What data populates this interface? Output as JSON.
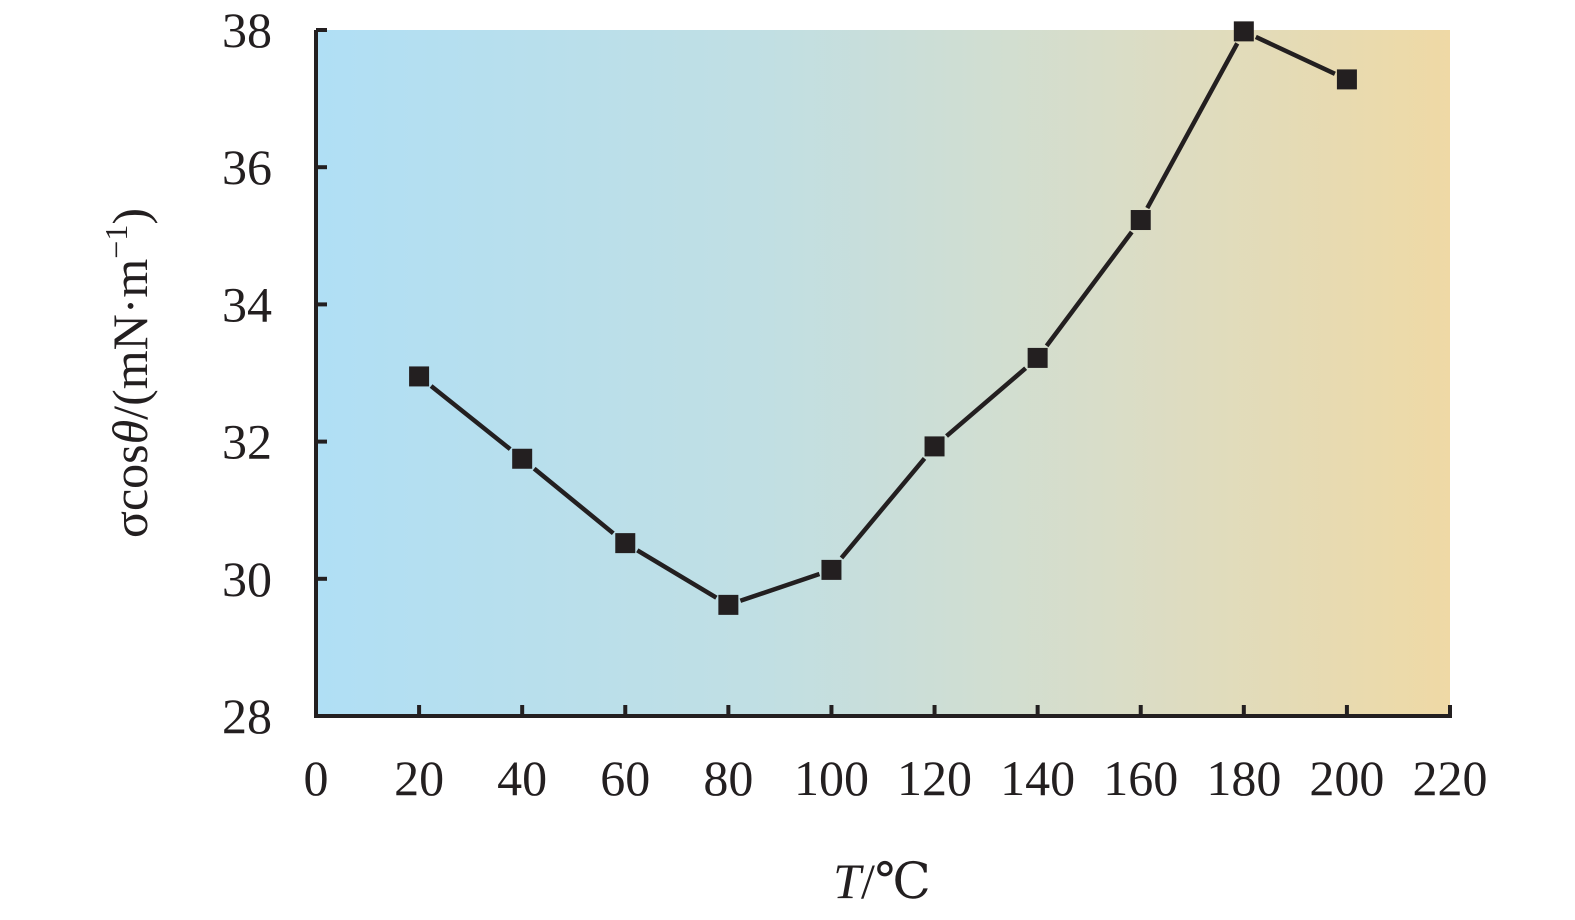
{
  "chart_data": {
    "type": "line",
    "title": "",
    "xlabel_var": "T",
    "xlabel_unit": "/℃",
    "ylabel_var": "σcos",
    "ylabel_theta": "θ",
    "ylabel_unit": "/(mN·m",
    "ylabel_exp": "−1",
    "ylabel_close": ")",
    "xlim": [
      0,
      220
    ],
    "ylim": [
      28,
      38
    ],
    "xticks": [
      "0",
      "20",
      "40",
      "60",
      "80",
      "100",
      "120",
      "140",
      "160",
      "180",
      "200",
      "220"
    ],
    "yticks": [
      "28",
      "30",
      "32",
      "34",
      "36",
      "38"
    ],
    "x": [
      20,
      40,
      60,
      80,
      100,
      120,
      140,
      160,
      180,
      200
    ],
    "series": [
      {
        "values": [
          32.95,
          31.75,
          30.52,
          29.62,
          30.13,
          31.93,
          33.22,
          35.23,
          37.98,
          37.28
        ]
      }
    ],
    "marker": "square",
    "grid": false,
    "background_gradient": [
      "#b0dff5",
      "#c1dfe3",
      "#d9ddc8",
      "#efd9a5"
    ],
    "line_color": "#231f20"
  }
}
